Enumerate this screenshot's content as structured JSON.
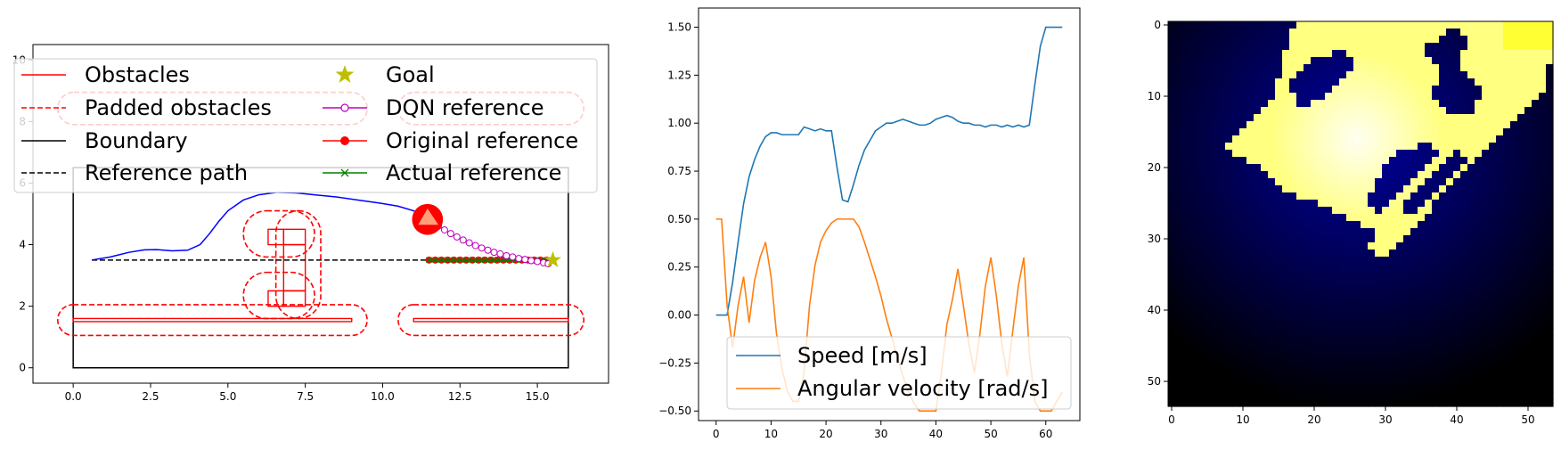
{
  "chart_data": [
    {
      "type": "line",
      "panel": "map",
      "xlim": [
        -1.3,
        17.3
      ],
      "ylim": [
        -0.5,
        10.5
      ],
      "xticks": [
        0.0,
        2.5,
        5.0,
        7.5,
        10.0,
        12.5,
        15.0
      ],
      "xtick_labels": [
        "0.0",
        "2.5",
        "5.0",
        "7.5",
        "10.0",
        "12.5",
        "15.0"
      ],
      "yticks": [
        0,
        2,
        4,
        6,
        8,
        10
      ],
      "ytick_labels": [
        "0",
        "2",
        "4",
        "6",
        "8",
        "10"
      ],
      "legend_placement": "top",
      "legend": [
        {
          "label": "Obstacles",
          "key": "obstacles"
        },
        {
          "label": "Padded obstacles",
          "key": "padded"
        },
        {
          "label": "Boundary",
          "key": "boundary"
        },
        {
          "label": "Reference path",
          "key": "refpath"
        },
        {
          "label": "Goal",
          "key": "goal"
        },
        {
          "label": "DQN reference",
          "key": "dqn"
        },
        {
          "label": "Original reference",
          "key": "original"
        },
        {
          "label": "Actual reference",
          "key": "actual"
        }
      ],
      "colors": {
        "obstacles": "#ff0000",
        "padded": "#ff0000",
        "boundary": "#000000",
        "refpath": "#000000",
        "goal": "#bfbf00",
        "dqn": "#bf00bf",
        "original": "#ff0000",
        "actual": "#008000",
        "trajectory": "#0000ff",
        "robot": "#ff0000",
        "robot_heading": "#ffa07a"
      },
      "boundary": [
        [
          0,
          0
        ],
        [
          16,
          0
        ],
        [
          16,
          6.5
        ],
        [
          0,
          6.5
        ]
      ],
      "obstacles": [
        [
          [
            0,
            1.5
          ],
          [
            9,
            1.5
          ],
          [
            9,
            1.6
          ],
          [
            0,
            1.6
          ]
        ],
        [
          [
            11,
            1.5
          ],
          [
            16,
            1.5
          ],
          [
            16,
            1.6
          ],
          [
            11,
            1.6
          ]
        ],
        [
          [
            6.3,
            2.0
          ],
          [
            6.8,
            2.0
          ],
          [
            6.8,
            2.5
          ],
          [
            6.3,
            2.5
          ]
        ],
        [
          [
            6.8,
            2.0
          ],
          [
            7.5,
            2.0
          ],
          [
            7.5,
            2.5
          ],
          [
            6.8,
            2.5
          ]
        ],
        [
          [
            6.3,
            4.0
          ],
          [
            6.8,
            4.0
          ],
          [
            6.8,
            4.5
          ],
          [
            6.3,
            4.5
          ]
        ],
        [
          [
            6.8,
            4.0
          ],
          [
            7.5,
            4.0
          ],
          [
            7.5,
            4.5
          ],
          [
            6.8,
            4.5
          ]
        ],
        [
          [
            6.8,
            2.5
          ],
          [
            7.5,
            2.5
          ],
          [
            7.5,
            4.0
          ],
          [
            6.8,
            4.0
          ]
        ]
      ],
      "padded_obstacles": [
        {
          "x0": -0.5,
          "y0": 1.05,
          "x1": 9.5,
          "y1": 2.05
        },
        {
          "x0": 10.5,
          "y0": 1.05,
          "x1": 16.5,
          "y1": 2.05
        },
        {
          "x0": 5.5,
          "y0": 1.6,
          "x1": 7.8,
          "y1": 3.1
        },
        {
          "x0": 5.5,
          "y0": 3.6,
          "x1": 7.8,
          "y1": 5.1
        },
        {
          "x0": 6.55,
          "y0": 1.6,
          "x1": 8.0,
          "y1": 5.1
        },
        {
          "x0": -0.5,
          "y0": 7.9,
          "x1": 9.5,
          "y1": 8.95
        },
        {
          "x0": 10.5,
          "y0": 7.9,
          "x1": 16.5,
          "y1": 8.95
        }
      ],
      "reference_path": {
        "x": [
          0.6,
          15.5
        ],
        "y": [
          3.5,
          3.5
        ]
      },
      "trajectory": {
        "x": [
          0.6,
          1.2,
          1.8,
          2.3,
          2.7,
          3.2,
          3.7,
          4.1,
          4.4,
          4.7,
          5.0,
          5.5,
          6.0,
          6.6,
          7.2,
          7.8,
          8.5,
          9.2,
          9.9,
          10.5,
          11.0,
          11.4
        ],
        "y": [
          3.5,
          3.6,
          3.75,
          3.83,
          3.84,
          3.8,
          3.82,
          4.0,
          4.35,
          4.75,
          5.1,
          5.45,
          5.62,
          5.7,
          5.68,
          5.62,
          5.55,
          5.45,
          5.35,
          5.25,
          5.1,
          4.9
        ]
      },
      "robot": {
        "x": 11.45,
        "y": 4.82,
        "radius": 0.5
      },
      "dqn_reference": {
        "x": [
          11.6,
          11.8,
          12.0,
          12.2,
          12.4,
          12.6,
          12.8,
          13.0,
          13.2,
          13.4,
          13.6,
          13.8,
          14.0,
          14.2,
          14.4,
          14.6,
          14.8,
          15.0,
          15.2,
          15.35
        ],
        "y": [
          4.72,
          4.6,
          4.48,
          4.36,
          4.25,
          4.15,
          4.06,
          3.97,
          3.89,
          3.82,
          3.75,
          3.7,
          3.64,
          3.6,
          3.55,
          3.52,
          3.48,
          3.45,
          3.41,
          3.38
        ]
      },
      "original_reference": {
        "x": [
          11.5,
          11.7,
          11.9,
          12.1,
          12.3,
          12.5,
          12.7,
          12.9,
          13.1,
          13.3,
          13.5,
          13.7,
          13.9,
          14.1,
          14.3,
          14.5,
          14.7,
          14.9,
          15.1,
          15.3
        ],
        "y": [
          3.5,
          3.5,
          3.5,
          3.5,
          3.5,
          3.5,
          3.5,
          3.5,
          3.5,
          3.5,
          3.5,
          3.5,
          3.5,
          3.5,
          3.5,
          3.5,
          3.5,
          3.5,
          3.5,
          3.5
        ]
      },
      "actual_reference": {
        "x": [
          11.5,
          11.7,
          11.9,
          12.1,
          12.3,
          12.5,
          12.7,
          12.9,
          13.1,
          13.3,
          13.5,
          13.7,
          13.9,
          14.1,
          14.3,
          14.5,
          14.7,
          14.9,
          15.1,
          15.3
        ],
        "y": [
          3.5,
          3.5,
          3.5,
          3.5,
          3.5,
          3.5,
          3.5,
          3.5,
          3.5,
          3.5,
          3.5,
          3.5,
          3.5,
          3.5,
          3.5,
          3.5,
          3.5,
          3.5,
          3.5,
          3.5
        ]
      },
      "goal": {
        "x": 15.5,
        "y": 3.5
      }
    },
    {
      "type": "line",
      "panel": "velocities",
      "xlim": [
        -3.2,
        66.2
      ],
      "ylim": [
        -0.55,
        1.6
      ],
      "xticks": [
        0,
        10,
        20,
        30,
        40,
        50,
        60
      ],
      "xtick_labels": [
        "0",
        "10",
        "20",
        "30",
        "40",
        "50",
        "60"
      ],
      "yticks": [
        -0.5,
        -0.25,
        0.0,
        0.25,
        0.5,
        0.75,
        1.0,
        1.25,
        1.5
      ],
      "ytick_labels": [
        "−0.50",
        "−0.25",
        "0.00",
        "0.25",
        "0.50",
        "0.75",
        "1.00",
        "1.25",
        "1.50"
      ],
      "legend_placement": "lower center",
      "series": [
        {
          "name": "Speed [m/s]",
          "color": "#1f77b4",
          "x": [
            0,
            1,
            2,
            3,
            4,
            5,
            6,
            7,
            8,
            9,
            10,
            11,
            12,
            13,
            14,
            15,
            16,
            17,
            18,
            19,
            20,
            21,
            22,
            23,
            24,
            25,
            26,
            27,
            28,
            29,
            30,
            31,
            32,
            33,
            34,
            35,
            36,
            37,
            38,
            39,
            40,
            41,
            42,
            43,
            44,
            45,
            46,
            47,
            48,
            49,
            50,
            51,
            52,
            53,
            54,
            55,
            56,
            57,
            58,
            59,
            60,
            61,
            62,
            63
          ],
          "values": [
            0.0,
            0.0,
            0.0,
            0.17,
            0.38,
            0.58,
            0.72,
            0.81,
            0.88,
            0.93,
            0.95,
            0.95,
            0.94,
            0.94,
            0.94,
            0.94,
            0.98,
            0.97,
            0.96,
            0.97,
            0.96,
            0.96,
            0.77,
            0.6,
            0.59,
            0.68,
            0.78,
            0.86,
            0.91,
            0.96,
            0.98,
            1.0,
            1.0,
            1.01,
            1.02,
            1.01,
            1.0,
            0.99,
            0.99,
            1.0,
            1.02,
            1.03,
            1.04,
            1.03,
            1.01,
            1.0,
            1.0,
            0.99,
            0.99,
            0.98,
            0.99,
            0.99,
            0.98,
            0.99,
            0.98,
            0.99,
            0.98,
            0.99,
            1.2,
            1.4,
            1.5,
            1.5,
            1.5,
            1.5
          ]
        },
        {
          "name": "Angular velocity [rad/s]",
          "color": "#ff7f0e",
          "x": [
            0,
            1,
            2,
            3,
            4,
            5,
            6,
            7,
            8,
            9,
            10,
            11,
            12,
            13,
            14,
            15,
            16,
            17,
            18,
            19,
            20,
            21,
            22,
            23,
            24,
            25,
            26,
            27,
            28,
            29,
            30,
            31,
            32,
            33,
            34,
            35,
            36,
            37,
            38,
            39,
            40,
            41,
            42,
            43,
            44,
            45,
            46,
            47,
            48,
            49,
            50,
            51,
            52,
            53,
            54,
            55,
            56,
            57,
            58,
            59,
            60,
            61,
            62,
            63
          ],
          "values": [
            0.5,
            0.5,
            0.05,
            -0.17,
            0.05,
            0.2,
            -0.04,
            0.18,
            0.3,
            0.38,
            0.2,
            -0.1,
            -0.28,
            -0.4,
            -0.45,
            -0.45,
            -0.3,
            0.05,
            0.26,
            0.38,
            0.44,
            0.48,
            0.5,
            0.5,
            0.5,
            0.5,
            0.46,
            0.38,
            0.29,
            0.2,
            0.1,
            -0.02,
            -0.12,
            -0.22,
            -0.32,
            -0.4,
            -0.46,
            -0.5,
            -0.5,
            -0.5,
            -0.5,
            -0.3,
            -0.05,
            0.08,
            0.24,
            0.05,
            -0.15,
            -0.3,
            -0.1,
            0.15,
            0.3,
            0.1,
            -0.15,
            -0.32,
            -0.08,
            0.15,
            0.3,
            -0.2,
            -0.45,
            -0.5,
            -0.5,
            -0.5,
            -0.45,
            -0.4
          ]
        }
      ]
    },
    {
      "type": "heatmap",
      "panel": "occupancy",
      "xlim": [
        -0.5,
        53.5
      ],
      "ylim": [
        53.5,
        -0.5
      ],
      "xticks": [
        0,
        10,
        20,
        30,
        40,
        50
      ],
      "xtick_labels": [
        "0",
        "10",
        "20",
        "30",
        "40",
        "50"
      ],
      "yticks": [
        0,
        10,
        20,
        30,
        40,
        50
      ],
      "ytick_labels": [
        "0",
        "10",
        "20",
        "30",
        "40",
        "50"
      ],
      "grid_size": 54,
      "colormap": [
        "#000000",
        "#0000a0",
        "#ffff80",
        "#ffffff"
      ],
      "bright_center": [
        26,
        16
      ],
      "bright_band": [
        [
          [
            42,
            -1
          ],
          [
            54,
            -1
          ],
          [
            54,
            4
          ],
          [
            49,
            4
          ]
        ],
        [
          [
            18,
            -1
          ],
          [
            42,
            -1
          ],
          [
            49,
            4
          ],
          [
            46,
            10
          ],
          [
            41,
            19
          ],
          [
            30,
            30
          ],
          [
            26,
            28
          ],
          [
            22,
            26
          ],
          [
            17,
            24
          ],
          [
            10,
            18
          ],
          [
            15,
            10
          ]
        ],
        [
          [
            49,
            4
          ],
          [
            54,
            4
          ],
          [
            53,
            9
          ],
          [
            45,
            18
          ],
          [
            37,
            26
          ],
          [
            31,
            33
          ],
          [
            28,
            32
          ]
        ],
        [
          [
            15,
            10
          ],
          [
            18,
            9
          ],
          [
            20,
            12
          ],
          [
            12,
            20
          ],
          [
            8,
            18
          ]
        ]
      ],
      "dark_islands": [
        [
          [
            17,
            8
          ],
          [
            21,
            5
          ],
          [
            25,
            4
          ],
          [
            27,
            6
          ],
          [
            22,
            11
          ],
          [
            18,
            12
          ]
        ],
        [
          [
            37,
            3
          ],
          [
            40,
            1
          ],
          [
            42,
            2
          ],
          [
            41,
            6
          ],
          [
            44,
            10
          ],
          [
            43,
            13
          ],
          [
            40,
            13
          ],
          [
            37,
            11
          ],
          [
            38,
            7
          ],
          [
            36,
            4
          ]
        ],
        [
          [
            31,
            19
          ],
          [
            37,
            17
          ],
          [
            38,
            19
          ],
          [
            35,
            22
          ],
          [
            30,
            27
          ],
          [
            28,
            25
          ]
        ],
        [
          [
            33,
            26
          ],
          [
            38,
            20
          ],
          [
            41,
            18
          ],
          [
            42,
            20
          ],
          [
            38,
            24
          ],
          [
            34,
            28
          ]
        ]
      ]
    }
  ]
}
